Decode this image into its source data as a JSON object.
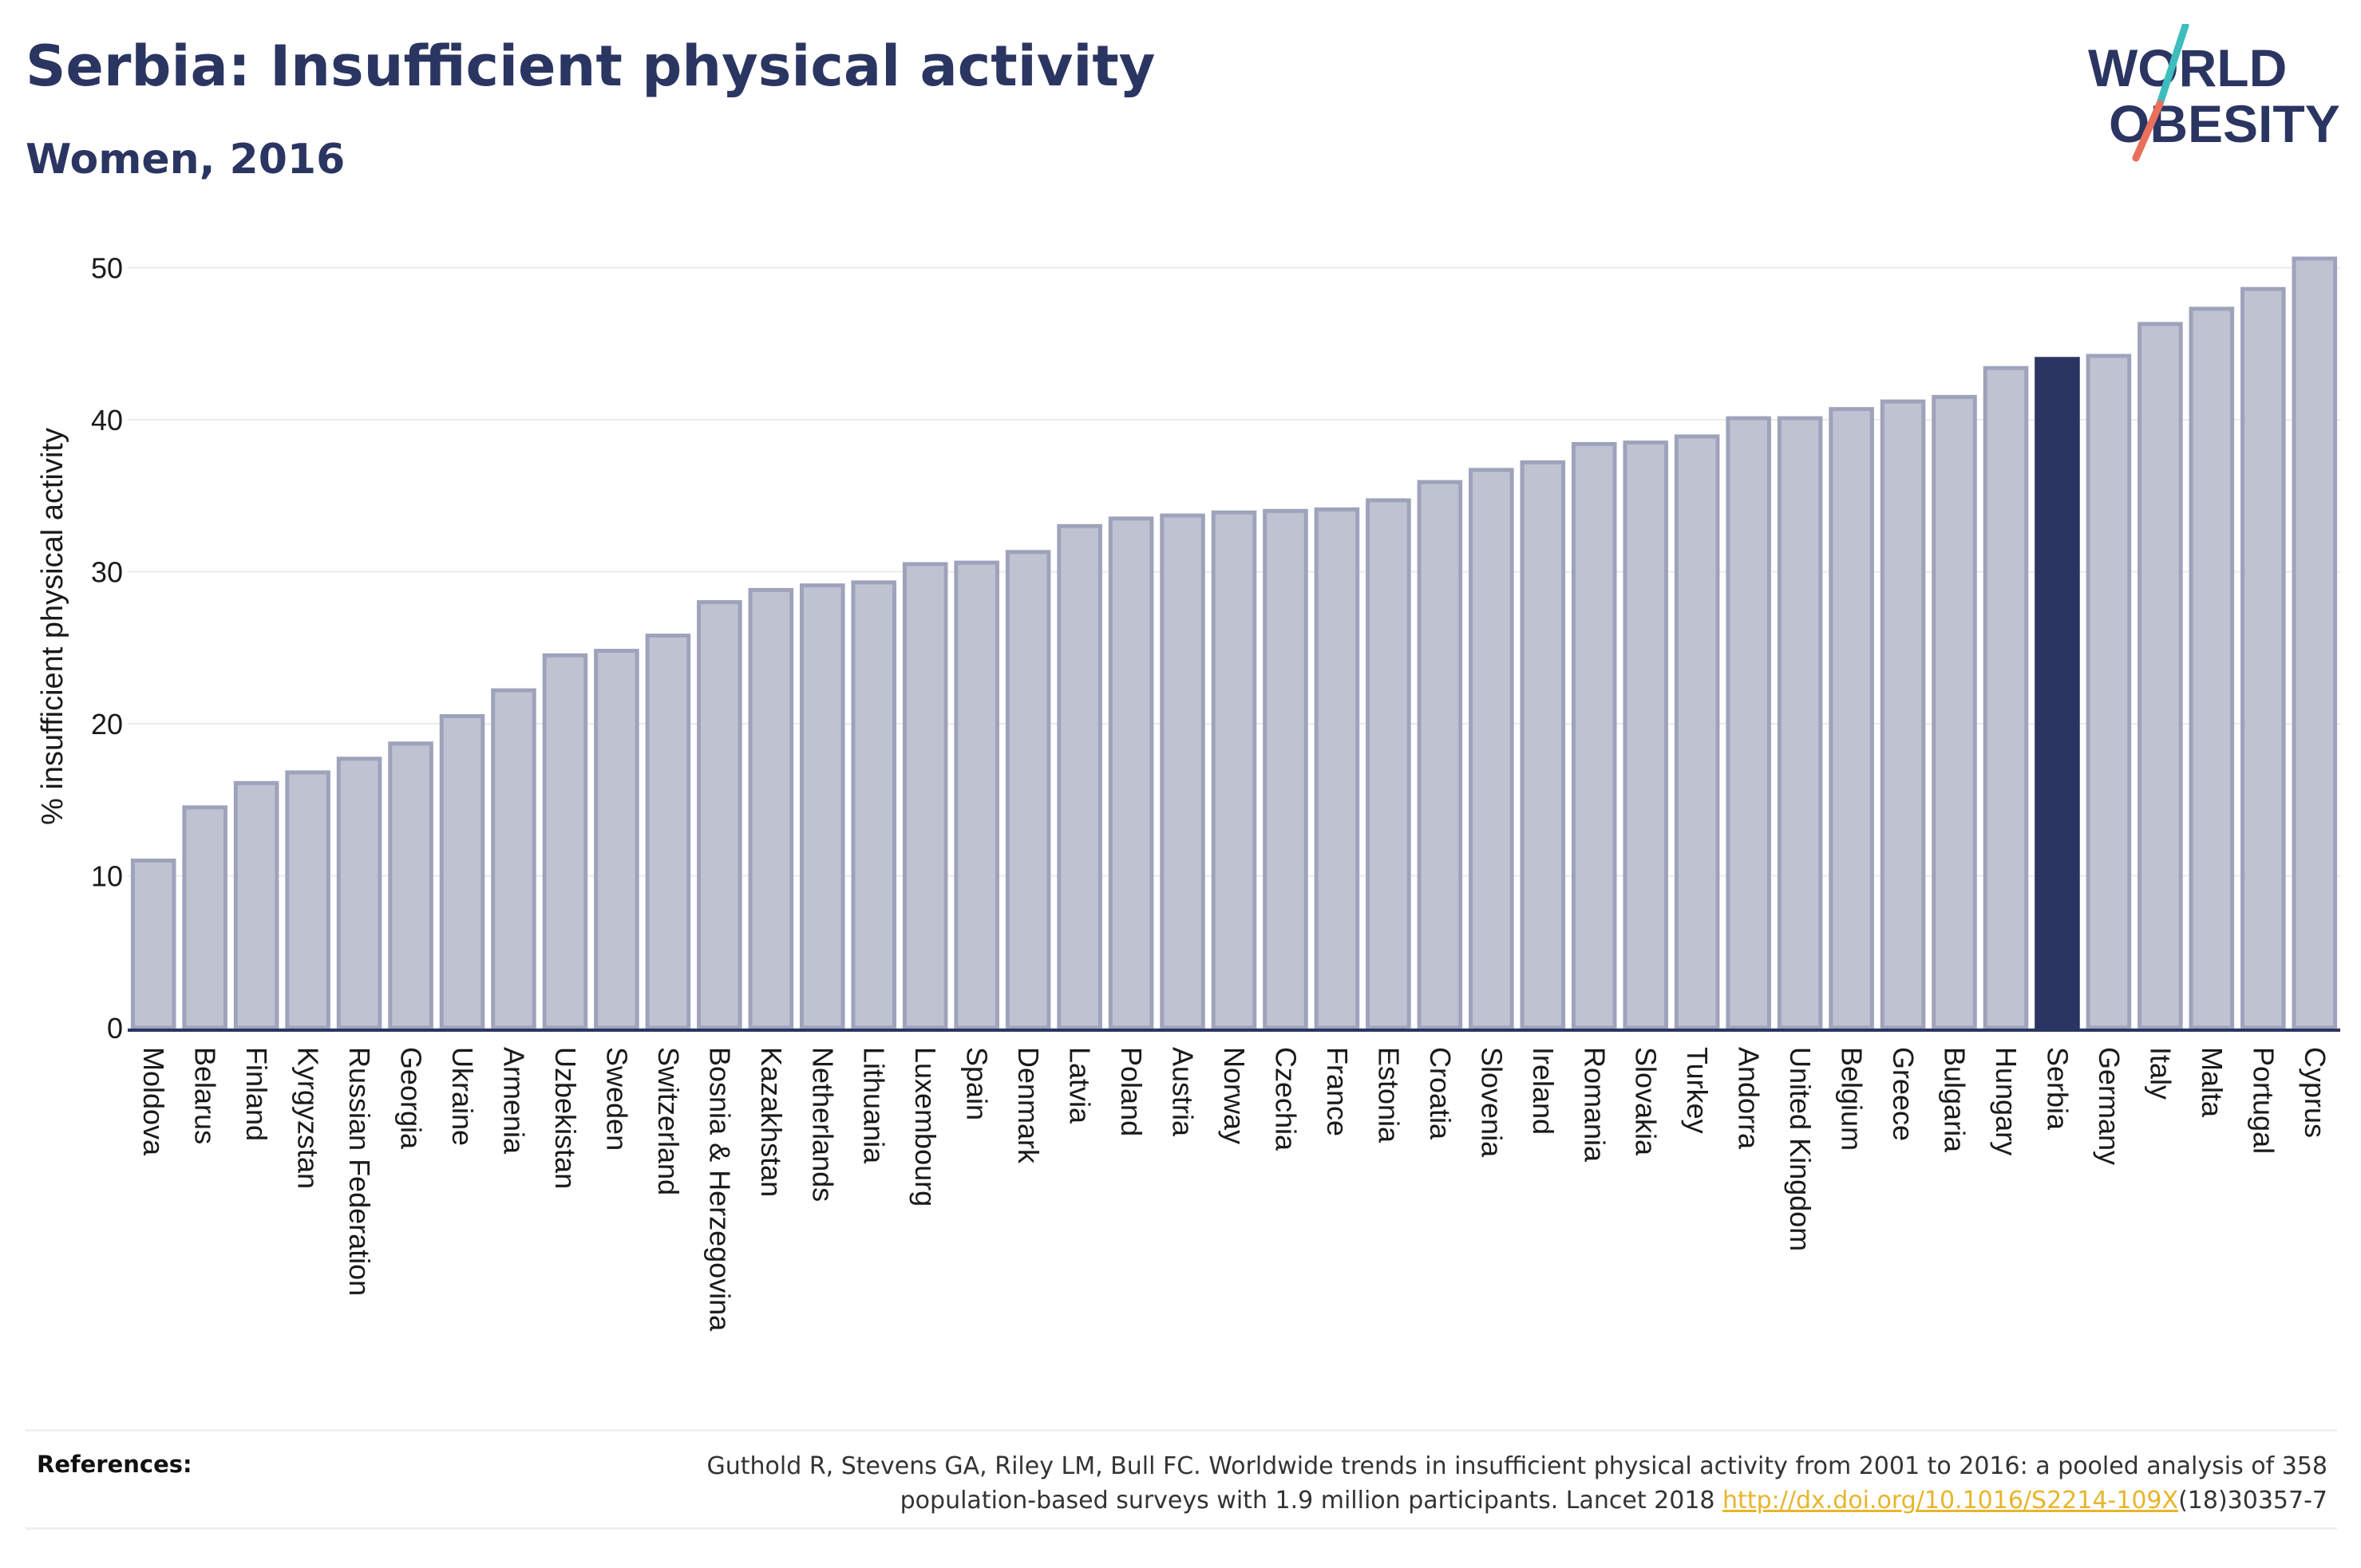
{
  "header": {
    "title": "Serbia: Insufficient physical activity",
    "subtitle": "Women, 2016"
  },
  "logo": {
    "line1": "WORLD",
    "line2": "OBESITY",
    "text_color": "#2b3561",
    "slash_color_top": "#3dbdbd",
    "slash_color_bottom": "#e8705c"
  },
  "colors": {
    "bar_fill": "#bfc2d0",
    "bar_stroke": "#9ea3bb",
    "highlight": "#2b3561",
    "grid": "#ebebeb",
    "text": "#1a1a1a"
  },
  "chart_data": {
    "type": "bar",
    "ylabel": "% insufficient physical activity",
    "ylim": [
      0,
      52
    ],
    "yticks": [
      0,
      10,
      20,
      30,
      40,
      50
    ],
    "grid": true,
    "highlight": "Serbia",
    "categories": [
      "Moldova",
      "Belarus",
      "Finland",
      "Kyrgyzstan",
      "Russian Federation",
      "Georgia",
      "Ukraine",
      "Armenia",
      "Uzbekistan",
      "Sweden",
      "Switzerland",
      "Bosnia & Herzegovina",
      "Kazakhstan",
      "Netherlands",
      "Lithuania",
      "Luxembourg",
      "Spain",
      "Denmark",
      "Latvia",
      "Poland",
      "Austria",
      "Norway",
      "Czechia",
      "France",
      "Estonia",
      "Croatia",
      "Slovenia",
      "Ireland",
      "Romania",
      "Slovakia",
      "Turkey",
      "Andorra",
      "United Kingdom",
      "Belgium",
      "Greece",
      "Bulgaria",
      "Hungary",
      "Serbia",
      "Germany",
      "Italy",
      "Malta",
      "Portugal",
      "Cyprus"
    ],
    "values": [
      11.0,
      14.5,
      16.1,
      16.8,
      17.7,
      18.7,
      20.5,
      22.2,
      24.5,
      24.8,
      25.8,
      28.0,
      28.8,
      29.1,
      29.3,
      30.5,
      30.6,
      31.3,
      33.0,
      33.5,
      33.7,
      33.9,
      34.0,
      34.1,
      34.7,
      35.9,
      36.7,
      37.2,
      38.4,
      38.5,
      38.9,
      40.1,
      40.1,
      40.7,
      41.2,
      41.5,
      43.4,
      44.0,
      44.2,
      46.3,
      47.3,
      48.6,
      50.6
    ]
  },
  "references": {
    "label": "References:",
    "text_before_link": "Guthold R, Stevens GA, Riley LM, Bull FC. Worldwide trends in insufficient physical activity from 2001 to 2016: a pooled analysis of 358 population-based surveys with 1.9 million participants. Lancet 2018 ",
    "link_text": "http://dx.doi.org/10.1016/S2214-109X",
    "text_after_link": "(18)30357-7"
  }
}
